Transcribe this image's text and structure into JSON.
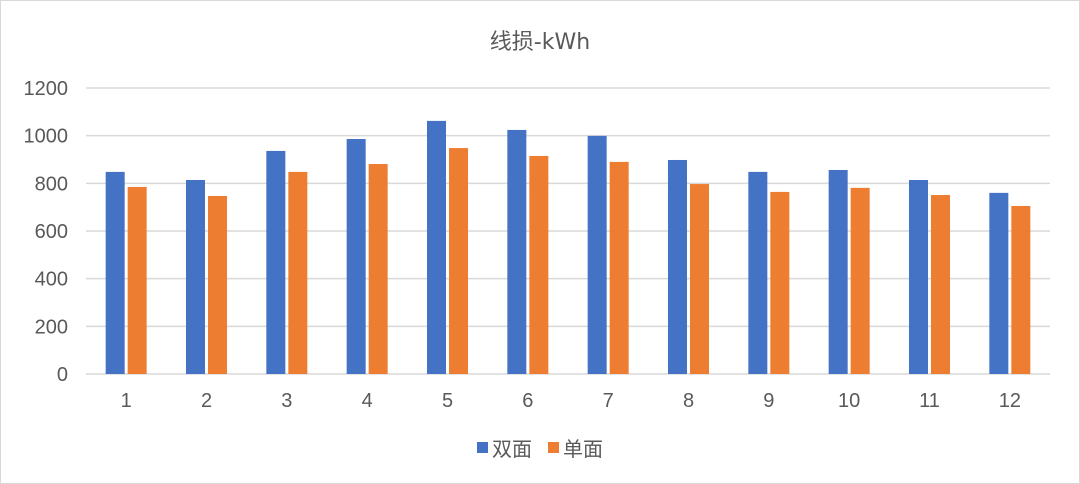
{
  "chart_data": {
    "type": "bar",
    "title": "线损-kWh",
    "xlabel": "",
    "ylabel": "",
    "ylim": [
      0,
      1200
    ],
    "yticks": [
      0,
      200,
      400,
      600,
      800,
      1000,
      1200
    ],
    "grid": true,
    "legend_position": "bottom",
    "categories": [
      "1",
      "2",
      "3",
      "4",
      "5",
      "6",
      "7",
      "8",
      "9",
      "10",
      "11",
      "12"
    ],
    "series": [
      {
        "name": "双面",
        "color": "#4472c4",
        "values": [
          848,
          814,
          936,
          986,
          1062,
          1024,
          999,
          898,
          848,
          856,
          814,
          760
        ]
      },
      {
        "name": "单面",
        "color": "#ed7d31",
        "values": [
          785,
          747,
          848,
          881,
          948,
          915,
          890,
          797,
          764,
          781,
          751,
          705
        ]
      }
    ]
  }
}
